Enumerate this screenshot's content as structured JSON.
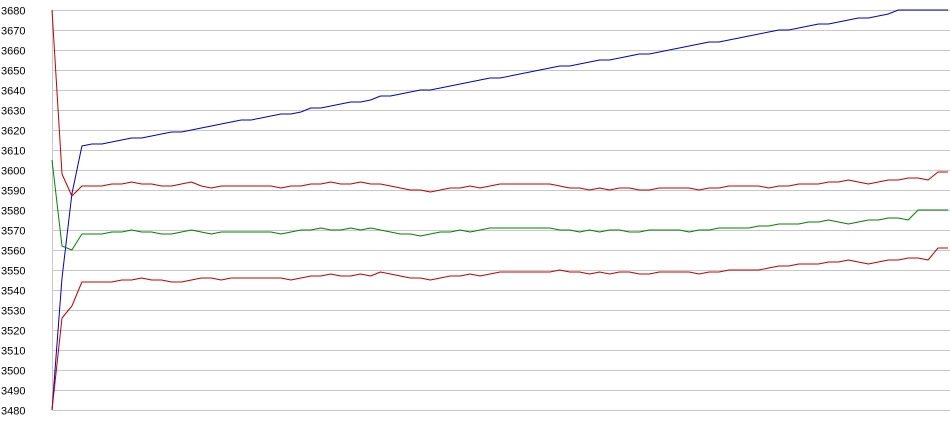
{
  "chart_data": {
    "type": "line",
    "title": "",
    "xlabel": "",
    "ylabel": "",
    "ylim": [
      3480,
      3680
    ],
    "xlim": [
      0,
      90
    ],
    "grid": true,
    "legend": "none",
    "y_ticks": [
      "3480",
      "3490",
      "3500",
      "3510",
      "3520",
      "3530",
      "3540",
      "3550",
      "3560",
      "3570",
      "3580",
      "3590",
      "3600",
      "3610",
      "3620",
      "3630",
      "3640",
      "3650",
      "3660",
      "3670",
      "3680"
    ],
    "x": [
      0,
      1,
      2,
      3,
      4,
      5,
      6,
      7,
      8,
      9,
      10,
      11,
      12,
      13,
      14,
      15,
      16,
      17,
      18,
      19,
      20,
      21,
      22,
      23,
      24,
      25,
      26,
      27,
      28,
      29,
      30,
      31,
      32,
      33,
      34,
      35,
      36,
      37,
      38,
      39,
      40,
      41,
      42,
      43,
      44,
      45,
      46,
      47,
      48,
      49,
      50,
      51,
      52,
      53,
      54,
      55,
      56,
      57,
      58,
      59,
      60,
      61,
      62,
      63,
      64,
      65,
      66,
      67,
      68,
      69,
      70,
      71,
      72,
      73,
      74,
      75,
      76,
      77,
      78,
      79,
      80,
      81,
      82,
      83,
      84,
      85,
      86,
      87,
      88,
      89,
      90
    ],
    "series": [
      {
        "color": "#0000c0",
        "values": [
          3480,
          3546,
          3588,
          3612,
          3613,
          3613,
          3614,
          3615,
          3616,
          3616,
          3617,
          3618,
          3619,
          3619,
          3620,
          3621,
          3622,
          3623,
          3624,
          3625,
          3625,
          3626,
          3627,
          3628,
          3628,
          3629,
          3631,
          3631,
          3632,
          3633,
          3634,
          3634,
          3635,
          3637,
          3637,
          3638,
          3639,
          3640,
          3640,
          3641,
          3642,
          3643,
          3644,
          3645,
          3646,
          3646,
          3647,
          3648,
          3649,
          3650,
          3651,
          3652,
          3652,
          3653,
          3654,
          3655,
          3655,
          3656,
          3657,
          3658,
          3658,
          3659,
          3660,
          3661,
          3662,
          3663,
          3664,
          3664,
          3665,
          3666,
          3667,
          3668,
          3669,
          3670,
          3670,
          3671,
          3672,
          3673,
          3673,
          3674,
          3675,
          3676,
          3676,
          3677,
          3678,
          3680,
          3680,
          3680,
          3680,
          3680,
          3680
        ]
      },
      {
        "color": "#c00000",
        "values": [
          3680,
          3598,
          3587,
          3592,
          3592,
          3592,
          3593,
          3593,
          3594,
          3593,
          3593,
          3592,
          3592,
          3593,
          3594,
          3592,
          3591,
          3592,
          3592,
          3592,
          3592,
          3592,
          3592,
          3591,
          3592,
          3592,
          3593,
          3593,
          3594,
          3593,
          3593,
          3594,
          3593,
          3593,
          3592,
          3591,
          3590,
          3590,
          3589,
          3590,
          3591,
          3591,
          3592,
          3591,
          3592,
          3593,
          3593,
          3593,
          3593,
          3593,
          3593,
          3592,
          3591,
          3591,
          3590,
          3591,
          3590,
          3591,
          3591,
          3590,
          3590,
          3591,
          3591,
          3591,
          3591,
          3590,
          3591,
          3591,
          3592,
          3592,
          3592,
          3592,
          3591,
          3592,
          3592,
          3593,
          3593,
          3593,
          3594,
          3594,
          3595,
          3594,
          3593,
          3594,
          3595,
          3595,
          3596,
          3596,
          3595,
          3599,
          3599
        ]
      },
      {
        "color": "#008000",
        "values": [
          3605,
          3562,
          3560,
          3568,
          3568,
          3568,
          3569,
          3569,
          3570,
          3569,
          3569,
          3568,
          3568,
          3569,
          3570,
          3569,
          3568,
          3569,
          3569,
          3569,
          3569,
          3569,
          3569,
          3568,
          3569,
          3570,
          3570,
          3571,
          3570,
          3570,
          3571,
          3570,
          3571,
          3570,
          3569,
          3568,
          3568,
          3567,
          3568,
          3569,
          3569,
          3570,
          3569,
          3570,
          3571,
          3571,
          3571,
          3571,
          3571,
          3571,
          3571,
          3570,
          3570,
          3569,
          3570,
          3569,
          3570,
          3570,
          3569,
          3569,
          3570,
          3570,
          3570,
          3570,
          3569,
          3570,
          3570,
          3571,
          3571,
          3571,
          3571,
          3572,
          3572,
          3573,
          3573,
          3573,
          3574,
          3574,
          3575,
          3574,
          3573,
          3574,
          3575,
          3575,
          3576,
          3576,
          3575,
          3580,
          3580,
          3580,
          3580
        ]
      },
      {
        "color": "#c00000",
        "values": [
          3480,
          3526,
          3532,
          3544,
          3544,
          3544,
          3544,
          3545,
          3545,
          3546,
          3545,
          3545,
          3544,
          3544,
          3545,
          3546,
          3546,
          3545,
          3546,
          3546,
          3546,
          3546,
          3546,
          3546,
          3545,
          3546,
          3547,
          3547,
          3548,
          3547,
          3547,
          3548,
          3547,
          3549,
          3548,
          3547,
          3546,
          3546,
          3545,
          3546,
          3547,
          3547,
          3548,
          3547,
          3548,
          3549,
          3549,
          3549,
          3549,
          3549,
          3549,
          3550,
          3549,
          3549,
          3548,
          3549,
          3548,
          3549,
          3549,
          3548,
          3548,
          3549,
          3549,
          3549,
          3549,
          3548,
          3549,
          3549,
          3550,
          3550,
          3550,
          3550,
          3551,
          3552,
          3552,
          3553,
          3553,
          3553,
          3554,
          3554,
          3555,
          3554,
          3553,
          3554,
          3555,
          3555,
          3556,
          3556,
          3555,
          3561,
          3561
        ]
      }
    ]
  }
}
